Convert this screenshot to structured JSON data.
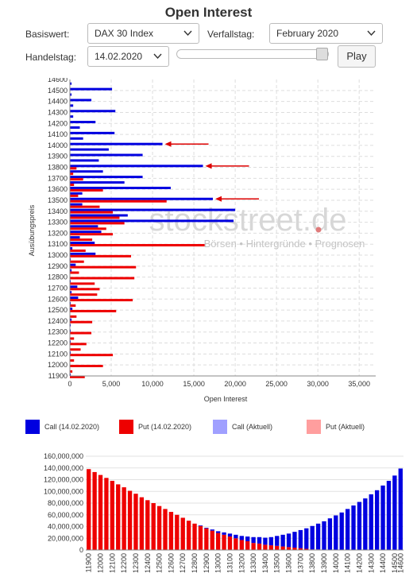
{
  "title": "Open Interest",
  "controls": {
    "basiswert_label": "Basiswert:",
    "basiswert_value": "DAX 30 Index",
    "verfallstag_label": "Verfallstag:",
    "verfallstag_value": "February 2020",
    "handelstag_label": "Handelstag:",
    "handelstag_value": "14.02.2020",
    "play_label": "Play",
    "slider_fraction": 1.0
  },
  "watermark": {
    "main": "stockstreet.de",
    "sub": "Börsen • Hintergründe • Prognosen"
  },
  "colors": {
    "call": "#0000e0",
    "put": "#ee0000",
    "call_current": "#a0a0ff",
    "put_current": "#ff9e9e",
    "arrow": "#dd0000",
    "grid": "#dddddd"
  },
  "legend": [
    {
      "label": "Call (14.02.2020)",
      "color": "#0000e0"
    },
    {
      "label": "Put (14.02.2020)",
      "color": "#ee0000"
    },
    {
      "label": "Call (Aktuell)",
      "color": "#a0a0ff"
    },
    {
      "label": "Put (Aktuell)",
      "color": "#ff9e9e"
    }
  ],
  "chart_data": [
    {
      "type": "bar",
      "orientation": "horizontal",
      "xlabel": "Open Interest",
      "ylabel": "Ausübungspreis",
      "xlim": [
        0,
        37000
      ],
      "xticks": [
        "0",
        "5,000",
        "10,000",
        "15,000",
        "20,000",
        "25,000",
        "30,000",
        "35,000"
      ],
      "xtick_values": [
        0,
        5000,
        10000,
        15000,
        20000,
        25000,
        30000,
        35000
      ],
      "strike_labels": [
        "14500",
        "14400",
        "14300",
        "14200",
        "14100",
        "14000",
        "13900",
        "13800",
        "13700",
        "13600",
        "13500",
        "13400",
        "13300",
        "13200",
        "13100",
        "13000",
        "12900",
        "12800",
        "12700",
        "12600",
        "12500",
        "12400",
        "12300",
        "12200",
        "12100",
        "12000",
        "11900"
      ],
      "top_partial_label": "14600",
      "strikes": [
        14550,
        14500,
        14450,
        14400,
        14350,
        14300,
        14250,
        14200,
        14150,
        14100,
        14050,
        14000,
        13950,
        13900,
        13850,
        13800,
        13750,
        13700,
        13650,
        13600,
        13550,
        13500,
        13450,
        13400,
        13350,
        13300,
        13250,
        13200,
        13150,
        13100,
        13050,
        13000,
        12950,
        12900,
        12850,
        12800,
        12750,
        12700,
        12650,
        12600,
        12550,
        12500,
        12450,
        12400,
        12350,
        12300,
        12250,
        12200,
        12150,
        12100,
        12050,
        12000,
        11950,
        11900
      ],
      "series": [
        {
          "name": "Call (14.02.2020)",
          "values": [
            200,
            5100,
            200,
            2600,
            400,
            5500,
            400,
            3100,
            1200,
            5400,
            1600,
            11200,
            4700,
            8800,
            3500,
            16100,
            4000,
            8800,
            6600,
            12200,
            1500,
            17300,
            1500,
            20000,
            7000,
            19800,
            3400,
            3800,
            1200,
            3000,
            300,
            3100,
            100,
            700,
            200,
            0,
            100,
            900,
            200,
            1000,
            100,
            300,
            0,
            200,
            100,
            100,
            0,
            100,
            0,
            100,
            0,
            0,
            0,
            100
          ]
        },
        {
          "name": "Put (14.02.2020)",
          "values": [
            0,
            0,
            0,
            0,
            0,
            0,
            0,
            0,
            0,
            0,
            0,
            0,
            0,
            0,
            0,
            800,
            400,
            1600,
            500,
            4000,
            1000,
            11700,
            3600,
            5200,
            6000,
            6600,
            4400,
            5200,
            2700,
            16300,
            1900,
            7400,
            1700,
            8000,
            1100,
            7800,
            3000,
            3600,
            3300,
            7600,
            700,
            5600,
            800,
            2700,
            0,
            2600,
            500,
            2000,
            1300,
            5200,
            500,
            4000,
            300,
            1800
          ]
        }
      ],
      "arrows_at": [
        14000,
        13800,
        13500
      ]
    },
    {
      "type": "bar",
      "yticks": [
        "0",
        "20,000,000",
        "40,000,000",
        "60,000,000",
        "80,000,000",
        "100,000,000",
        "120,000,000",
        "140,000,000",
        "160,000,000"
      ],
      "ylim": [
        0,
        160000000
      ],
      "xtick_labels": [
        "11900",
        "12000",
        "12100",
        "12200",
        "12300",
        "12400",
        "12500",
        "12600",
        "12700",
        "12800",
        "12900",
        "13000",
        "13100",
        "13200",
        "13300",
        "13400",
        "13500",
        "13600",
        "13700",
        "13800",
        "13900",
        "14000",
        "14100",
        "14200",
        "14300",
        "14400",
        "14500",
        "14600"
      ],
      "series": [
        {
          "name": "Put",
          "values": [
            138000000,
            133000000,
            128000000,
            123000000,
            118000000,
            112000000,
            107000000,
            101000000,
            96000000,
            90000000,
            85000000,
            80000000,
            75000000,
            70000000,
            65000000,
            60000000,
            55000000,
            50000000,
            45000000,
            41000000,
            37000000,
            33000000,
            29000000,
            26000000,
            23000000,
            20000000,
            17000000,
            15000000,
            12000000,
            11000000,
            9000000,
            8000000,
            7000000,
            6000000,
            5000000,
            4000000,
            3000000,
            2000000,
            1000000,
            1000000,
            0,
            0,
            0,
            0,
            0,
            0,
            0,
            0,
            0,
            0,
            0,
            0,
            0,
            0
          ]
        },
        {
          "name": "Call",
          "values": [
            0,
            0,
            0,
            0,
            0,
            0,
            0,
            0,
            0,
            0,
            0,
            0,
            0,
            0,
            0,
            0,
            0,
            0,
            0,
            1000000,
            1000000,
            2000000,
            3000000,
            4000000,
            5000000,
            6000000,
            7000000,
            8000000,
            10000000,
            11000000,
            12000000,
            14000000,
            17000000,
            20000000,
            23000000,
            27000000,
            31000000,
            35000000,
            40000000,
            44000000,
            49000000,
            54000000,
            59000000,
            64000000,
            70000000,
            76000000,
            82000000,
            88000000,
            95000000,
            102000000,
            110000000,
            118000000,
            127000000,
            139000000
          ]
        }
      ]
    }
  ]
}
